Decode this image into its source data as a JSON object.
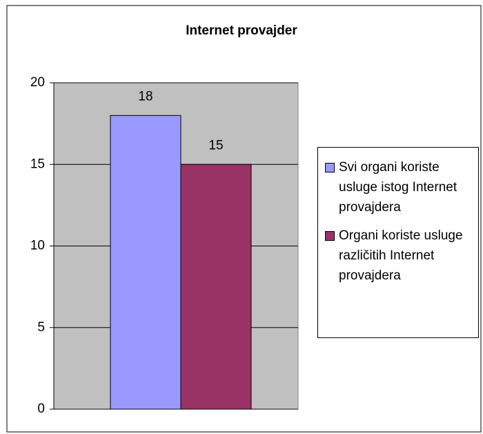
{
  "chart_data": {
    "type": "bar",
    "title": "Internet provajder",
    "series": [
      {
        "name": "Svi organi koriste usluge istog Internet provajdera",
        "color": "#9999ff",
        "values": [
          18
        ]
      },
      {
        "name": "Organi koriste usluge različitih Internet provajdera",
        "color": "#993366",
        "values": [
          15
        ]
      }
    ],
    "ylim": [
      0,
      20
    ],
    "yticks": [
      0,
      5,
      10,
      15,
      20
    ],
    "grid": true,
    "legend": "right"
  }
}
